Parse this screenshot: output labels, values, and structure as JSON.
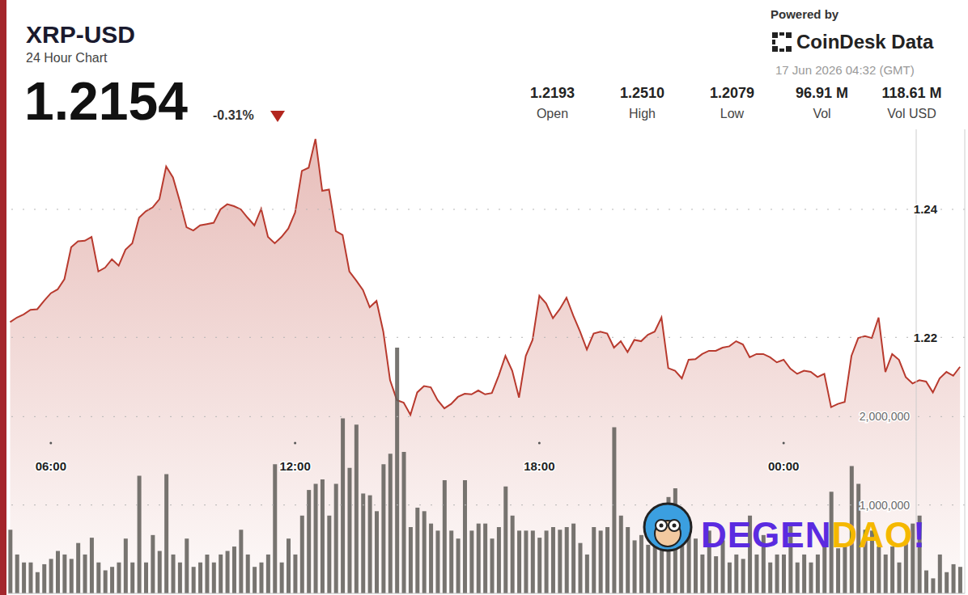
{
  "chart_data": {
    "type": "area",
    "title": "XRP-USD",
    "subtitle": "24 Hour Chart",
    "price": "1.2154",
    "change": "-0.31%",
    "source_label": "Powered by",
    "source": "CoinDesk Data",
    "timestamp": "17 Jun 2026 04:32 (GMT)",
    "stats": [
      {
        "label": "Open",
        "value": "1.2193"
      },
      {
        "label": "High",
        "value": "1.2510"
      },
      {
        "label": "Low",
        "value": "1.2079"
      },
      {
        "label": "Vol",
        "value": "96.91 M"
      },
      {
        "label": "Vol USD",
        "value": "118.61 M"
      }
    ],
    "watermark": [
      "DEGEN",
      "DAO",
      "!"
    ],
    "grid": true,
    "x": [
      300,
      310,
      320,
      330,
      340,
      350,
      360,
      370,
      380,
      390,
      400,
      410,
      420,
      430,
      440,
      450,
      460,
      470,
      480,
      490,
      500,
      510,
      520,
      530,
      540,
      550,
      560,
      570,
      580,
      590,
      600,
      610,
      620,
      630,
      640,
      650,
      660,
      670,
      680,
      690,
      700,
      710,
      720,
      730,
      740,
      750,
      760,
      770,
      780,
      790,
      800,
      810,
      820,
      830,
      840,
      850,
      860,
      870,
      880,
      890,
      900,
      910,
      920,
      930,
      940,
      950,
      960,
      970,
      980,
      990,
      1000,
      1010,
      1020,
      1030,
      1040,
      1050,
      1060,
      1070,
      1080,
      1090,
      1100,
      1110,
      1120,
      1130,
      1140,
      1150,
      1160,
      1170,
      1180,
      1190,
      1200,
      1210,
      1220,
      1230,
      1240,
      1250,
      1260,
      1270,
      1280,
      1290,
      1300,
      1310,
      1320,
      1330,
      1340,
      1350,
      1360,
      1370,
      1380,
      1390,
      1400,
      1410,
      1420,
      1430,
      1440,
      1450,
      1460,
      1470,
      1480,
      1490,
      1500,
      1510,
      1520,
      1530,
      1540,
      1550,
      1560,
      1570,
      1580,
      1590,
      1600,
      1610,
      1620,
      1630,
      1640,
      1650,
      1660,
      1670,
      1680,
      1690,
      1700
    ],
    "xlim": [
      297,
      1707
    ],
    "xticks": [
      {
        "value": 360,
        "label": "06:00"
      },
      {
        "value": 720,
        "label": "12:00"
      },
      {
        "value": 1080,
        "label": "18:00"
      },
      {
        "value": 1440,
        "label": "00:00"
      }
    ],
    "ylim": [
      1.18,
      1.2525
    ],
    "yticks": [
      1.22,
      1.24
    ],
    "y2lim": [
      0,
      5250000
    ],
    "y2ticks": [
      {
        "value": 1000000,
        "label": "1,000,000"
      },
      {
        "value": 2000000,
        "label": "2,000,000"
      }
    ],
    "series": [
      {
        "type": "area",
        "color": "#b83a2e",
        "values": [
          1.2224,
          1.2231,
          1.2236,
          1.2243,
          1.2244,
          1.2257,
          1.2269,
          1.2275,
          1.2291,
          1.2341,
          1.235,
          1.2351,
          1.2357,
          1.2303,
          1.2309,
          1.2322,
          1.2312,
          1.2337,
          1.2347,
          1.2387,
          1.2397,
          1.2403,
          1.2416,
          1.2467,
          1.245,
          1.2413,
          1.2372,
          1.2367,
          1.2375,
          1.2377,
          1.2379,
          1.24,
          1.2408,
          1.2405,
          1.24,
          1.2387,
          1.2375,
          1.2401,
          1.2357,
          1.2347,
          1.2357,
          1.237,
          1.2395,
          1.246,
          1.2465,
          1.251,
          1.2429,
          1.2431,
          1.2366,
          1.236,
          1.2303,
          1.2289,
          1.2274,
          1.2247,
          1.2257,
          1.2209,
          1.2133,
          1.2102,
          1.2098,
          1.2079,
          1.2114,
          1.2124,
          1.2122,
          1.2102,
          1.2089,
          1.2096,
          1.2107,
          1.2112,
          1.2111,
          1.2117,
          1.2111,
          1.2113,
          1.214,
          1.2171,
          1.2148,
          1.2106,
          1.2171,
          1.2196,
          1.2265,
          1.2253,
          1.223,
          1.2244,
          1.2262,
          1.2234,
          1.2209,
          1.2181,
          1.2206,
          1.2209,
          1.2206,
          1.2184,
          1.2194,
          1.2177,
          1.2196,
          1.2194,
          1.2204,
          1.2209,
          1.2231,
          1.2152,
          1.2148,
          1.2136,
          1.2165,
          1.2166,
          1.2174,
          1.2179,
          1.2179,
          1.2184,
          1.2186,
          1.2194,
          1.2189,
          1.2169,
          1.2174,
          1.2174,
          1.2169,
          1.2161,
          1.2165,
          1.2151,
          1.2143,
          1.2148,
          1.2146,
          1.2138,
          1.2143,
          1.2091,
          1.2096,
          1.2099,
          1.2171,
          1.2199,
          1.2202,
          1.2199,
          1.2231,
          1.2146,
          1.2174,
          1.2165,
          1.2138,
          1.2128,
          1.2133,
          1.2131,
          1.2114,
          1.2136,
          1.2146,
          1.214,
          1.2154
        ]
      },
      {
        "type": "bar",
        "axis": "y2",
        "color": "#5f5d58",
        "values": [
          720000,
          440000,
          350000,
          350000,
          240000,
          330000,
          390000,
          480000,
          440000,
          390000,
          570000,
          440000,
          630000,
          350000,
          260000,
          300000,
          350000,
          620000,
          350000,
          1330000,
          350000,
          660000,
          480000,
          1350000,
          440000,
          350000,
          620000,
          300000,
          350000,
          440000,
          350000,
          440000,
          480000,
          530000,
          720000,
          440000,
          300000,
          350000,
          440000,
          1460000,
          350000,
          620000,
          440000,
          880000,
          1170000,
          1240000,
          1290000,
          880000,
          1240000,
          1980000,
          1420000,
          1910000,
          1130000,
          1110000,
          930000,
          1460000,
          1580000,
          2780000,
          1600000,
          750000,
          970000,
          930000,
          790000,
          710000,
          1280000,
          710000,
          620000,
          1280000,
          710000,
          790000,
          790000,
          620000,
          750000,
          1210000,
          880000,
          710000,
          710000,
          710000,
          630000,
          710000,
          750000,
          720000,
          750000,
          790000,
          570000,
          440000,
          750000,
          710000,
          750000,
          1880000,
          880000,
          750000,
          600000,
          660000,
          550000,
          720000,
          560000,
          1090000,
          1190000,
          570000,
          710000,
          620000,
          440000,
          710000,
          420000,
          600000,
          350000,
          440000,
          390000,
          880000,
          440000,
          660000,
          350000,
          440000,
          440000,
          790000,
          350000,
          440000,
          350000,
          440000,
          570000,
          1150000,
          510000,
          530000,
          1440000,
          1240000,
          720000,
          710000,
          530000,
          440000,
          530000,
          350000,
          570000,
          790000,
          880000,
          260000,
          170000,
          440000,
          240000,
          330000,
          300000
        ]
      }
    ]
  }
}
